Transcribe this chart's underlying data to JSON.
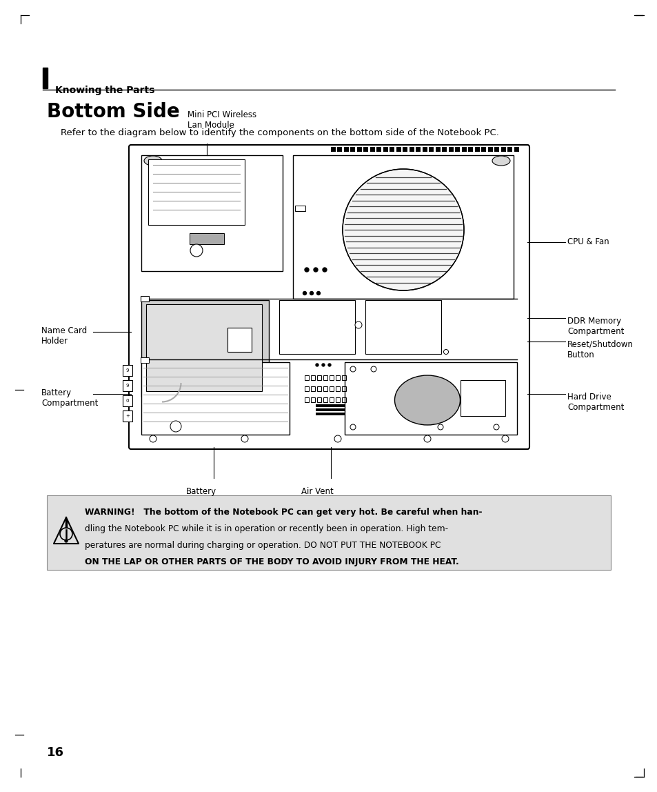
{
  "page_title": "Knowing the Parts",
  "section_title": "Bottom Side",
  "intro_text": "Refer to the diagram below to identify the components on the bottom side of the Notebook PC.",
  "page_number": "16",
  "labels": {
    "mini_pci": "Mini PCI Wireless\nLan Module",
    "cpu_fan": "CPU & Fan",
    "name_card": "Name Card\nHolder",
    "ddr_memory": "DDR Memory\nCompartment",
    "reset_shutdown": "Reset/Shutdown\nButton",
    "battery_compartment": "Battery\nCompartment",
    "hard_drive": "Hard Drive\nCompartment",
    "battery": "Battery",
    "air_vent": "Air Vent"
  },
  "warning_line1": "WARNING!   The bottom of the Notebook PC can get very hot. Be careful when han-",
  "warning_line2": "dling the Notebook PC while it is in operation or recently been in operation. High tem-",
  "warning_line3": "peratures are normal during charging or operation. DO NOT PUT THE NOTEBOOK PC",
  "warning_line4": "ON THE LAP OR OTHER PARTS OF THE BODY TO AVOID INJURY FROM THE HEAT.",
  "bg_color": "#ffffff",
  "warning_bg": "#e0e0e0"
}
